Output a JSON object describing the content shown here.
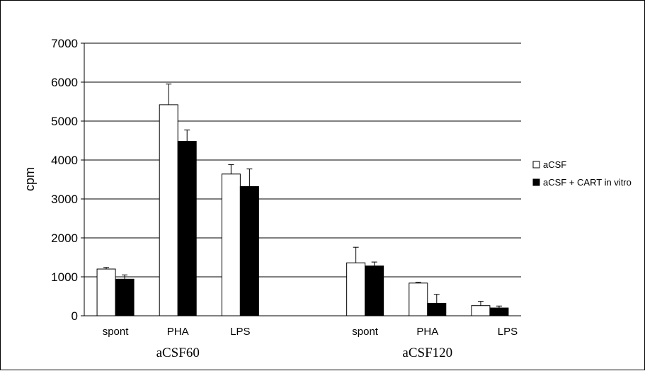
{
  "chart_data": {
    "type": "bar",
    "ylabel": "cpm",
    "ylim": [
      0,
      7000
    ],
    "yticks": [
      0,
      1000,
      2000,
      3000,
      4000,
      5000,
      6000,
      7000
    ],
    "grid": true,
    "legend_position": "right",
    "groups": [
      {
        "label": "aCSF60",
        "categories": [
          "spont",
          "PHA",
          "LPS"
        ]
      },
      {
        "label": "aCSF120",
        "categories": [
          "spont",
          "PHA",
          "LPS"
        ]
      }
    ],
    "series": [
      {
        "name": "aCSF",
        "color": "#ffffff",
        "values": [
          1200,
          5420,
          3640,
          1360,
          840,
          260
        ],
        "errors": [
          40,
          530,
          240,
          400,
          20,
          110
        ]
      },
      {
        "name": "aCSF + CART in vitro",
        "color": "#000000",
        "values": [
          940,
          4480,
          3320,
          1280,
          320,
          200
        ],
        "errors": [
          110,
          290,
          450,
          100,
          230,
          50
        ]
      }
    ]
  }
}
